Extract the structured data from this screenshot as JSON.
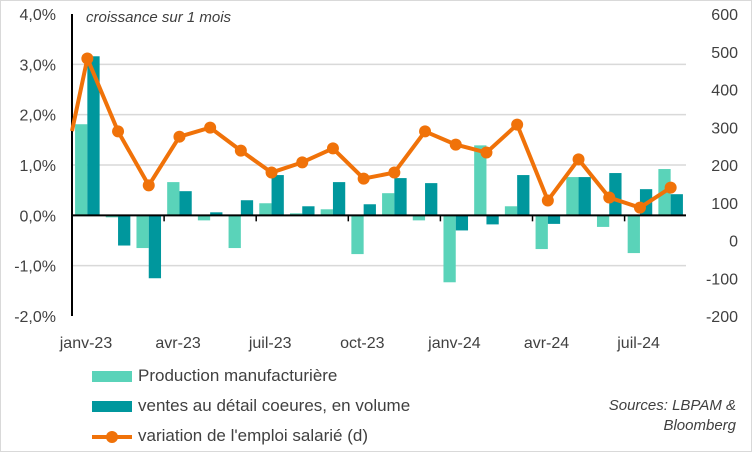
{
  "chart_data": {
    "type": "bar+line",
    "note": "croissance sur 1 mois",
    "categories": [
      "janv-23",
      "févr-23",
      "mars-23",
      "avr-23",
      "mai-23",
      "juin-23",
      "juil-23",
      "août-23",
      "sept-23",
      "oct-23",
      "nov-23",
      "déc-23",
      "janv-24",
      "févr-24",
      "mars-24",
      "avr-24",
      "mai-24",
      "juin-24",
      "juil-24",
      "août-24"
    ],
    "x_tick_labels": [
      "janv-23",
      "avr-23",
      "juil-23",
      "oct-23",
      "janv-24",
      "avr-24",
      "juil-24"
    ],
    "y_left": {
      "ticks": [
        "4,0%",
        "3,0%",
        "2,0%",
        "1,0%",
        "0,0%",
        "-1,0%",
        "-2,0%"
      ],
      "ylim": [
        -2,
        4
      ],
      "unit": "%"
    },
    "y_right": {
      "ticks": [
        "600",
        "500",
        "400",
        "300",
        "200",
        "100",
        "0",
        "-100",
        "-200"
      ],
      "ylim": [
        -200,
        600
      ]
    },
    "series": [
      {
        "name": "Production manufacturière",
        "type": "bar",
        "axis": "left",
        "color": "#5ad3b9",
        "values": [
          1.81,
          -0.04,
          -0.65,
          0.66,
          -0.1,
          -0.65,
          0.24,
          0.04,
          0.12,
          -0.77,
          0.44,
          -0.1,
          -1.33,
          1.39,
          0.18,
          -0.67,
          0.76,
          -0.23,
          -0.75,
          0.92
        ]
      },
      {
        "name": "ventes au détail coeures, en volume",
        "type": "bar",
        "axis": "left",
        "color": "#00979d",
        "values": [
          3.16,
          -0.6,
          -1.25,
          0.48,
          0.06,
          0.3,
          0.8,
          0.18,
          0.66,
          0.22,
          0.74,
          0.64,
          -0.3,
          -0.18,
          0.8,
          -0.17,
          0.76,
          0.84,
          0.52,
          0.42
        ]
      },
      {
        "name": "variation de l'emploi salarié (d)",
        "type": "line",
        "axis": "right",
        "color": "#f07209",
        "values": [
          482,
          289,
          146,
          275,
          299,
          238,
          180,
          207,
          244,
          164,
          180,
          289,
          254,
          233,
          307,
          106,
          215,
          114,
          87,
          140
        ]
      }
    ],
    "grid": true,
    "legend": "bottom-left"
  },
  "source": [
    "Sources: LBPAM &",
    "Bloomberg"
  ]
}
